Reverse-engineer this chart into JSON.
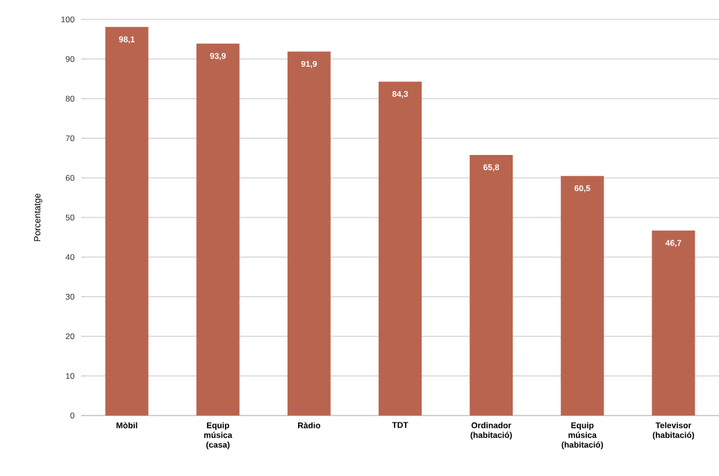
{
  "chart_data": {
    "type": "bar",
    "ylabel": "Porcentatge",
    "categories": [
      "Mòbil",
      "Equip música (casa)",
      "Ràdio",
      "TDT",
      "Ordinador (habitació)",
      "Equip música (habitació)",
      "Televisor (habitació)"
    ],
    "values": [
      98.1,
      93.9,
      91.9,
      84.3,
      65.8,
      60.5,
      46.7
    ],
    "value_labels": [
      "98,1",
      "93,9",
      "91,9",
      "84,3",
      "65,8",
      "60,5",
      "46,7"
    ],
    "color": "#b9644f",
    "ylim": [
      0,
      100
    ],
    "yticks": [
      0,
      10,
      20,
      30,
      40,
      50,
      60,
      70,
      80,
      90,
      100
    ],
    "grid": "y"
  }
}
